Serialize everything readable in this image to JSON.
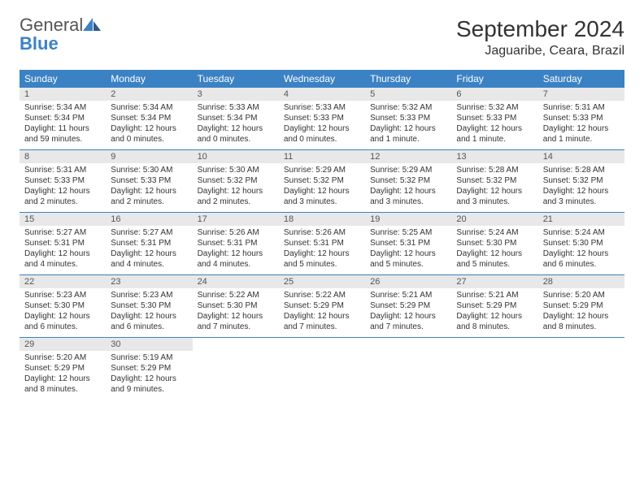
{
  "logo": {
    "text1": "General",
    "text2": "Blue"
  },
  "title": "September 2024",
  "location": "Jaguaribe, Ceara, Brazil",
  "colors": {
    "header_bg": "#3b82c4",
    "daynum_bg": "#e8e8e8",
    "text": "#333333",
    "border": "#3b82c4"
  },
  "weekdays": [
    "Sunday",
    "Monday",
    "Tuesday",
    "Wednesday",
    "Thursday",
    "Friday",
    "Saturday"
  ],
  "weeks": [
    {
      "days": [
        {
          "n": "1",
          "sr": "Sunrise: 5:34 AM",
          "ss": "Sunset: 5:34 PM",
          "dl": "Daylight: 11 hours and 59 minutes."
        },
        {
          "n": "2",
          "sr": "Sunrise: 5:34 AM",
          "ss": "Sunset: 5:34 PM",
          "dl": "Daylight: 12 hours and 0 minutes."
        },
        {
          "n": "3",
          "sr": "Sunrise: 5:33 AM",
          "ss": "Sunset: 5:34 PM",
          "dl": "Daylight: 12 hours and 0 minutes."
        },
        {
          "n": "4",
          "sr": "Sunrise: 5:33 AM",
          "ss": "Sunset: 5:33 PM",
          "dl": "Daylight: 12 hours and 0 minutes."
        },
        {
          "n": "5",
          "sr": "Sunrise: 5:32 AM",
          "ss": "Sunset: 5:33 PM",
          "dl": "Daylight: 12 hours and 1 minute."
        },
        {
          "n": "6",
          "sr": "Sunrise: 5:32 AM",
          "ss": "Sunset: 5:33 PM",
          "dl": "Daylight: 12 hours and 1 minute."
        },
        {
          "n": "7",
          "sr": "Sunrise: 5:31 AM",
          "ss": "Sunset: 5:33 PM",
          "dl": "Daylight: 12 hours and 1 minute."
        }
      ]
    },
    {
      "days": [
        {
          "n": "8",
          "sr": "Sunrise: 5:31 AM",
          "ss": "Sunset: 5:33 PM",
          "dl": "Daylight: 12 hours and 2 minutes."
        },
        {
          "n": "9",
          "sr": "Sunrise: 5:30 AM",
          "ss": "Sunset: 5:33 PM",
          "dl": "Daylight: 12 hours and 2 minutes."
        },
        {
          "n": "10",
          "sr": "Sunrise: 5:30 AM",
          "ss": "Sunset: 5:32 PM",
          "dl": "Daylight: 12 hours and 2 minutes."
        },
        {
          "n": "11",
          "sr": "Sunrise: 5:29 AM",
          "ss": "Sunset: 5:32 PM",
          "dl": "Daylight: 12 hours and 3 minutes."
        },
        {
          "n": "12",
          "sr": "Sunrise: 5:29 AM",
          "ss": "Sunset: 5:32 PM",
          "dl": "Daylight: 12 hours and 3 minutes."
        },
        {
          "n": "13",
          "sr": "Sunrise: 5:28 AM",
          "ss": "Sunset: 5:32 PM",
          "dl": "Daylight: 12 hours and 3 minutes."
        },
        {
          "n": "14",
          "sr": "Sunrise: 5:28 AM",
          "ss": "Sunset: 5:32 PM",
          "dl": "Daylight: 12 hours and 3 minutes."
        }
      ]
    },
    {
      "days": [
        {
          "n": "15",
          "sr": "Sunrise: 5:27 AM",
          "ss": "Sunset: 5:31 PM",
          "dl": "Daylight: 12 hours and 4 minutes."
        },
        {
          "n": "16",
          "sr": "Sunrise: 5:27 AM",
          "ss": "Sunset: 5:31 PM",
          "dl": "Daylight: 12 hours and 4 minutes."
        },
        {
          "n": "17",
          "sr": "Sunrise: 5:26 AM",
          "ss": "Sunset: 5:31 PM",
          "dl": "Daylight: 12 hours and 4 minutes."
        },
        {
          "n": "18",
          "sr": "Sunrise: 5:26 AM",
          "ss": "Sunset: 5:31 PM",
          "dl": "Daylight: 12 hours and 5 minutes."
        },
        {
          "n": "19",
          "sr": "Sunrise: 5:25 AM",
          "ss": "Sunset: 5:31 PM",
          "dl": "Daylight: 12 hours and 5 minutes."
        },
        {
          "n": "20",
          "sr": "Sunrise: 5:24 AM",
          "ss": "Sunset: 5:30 PM",
          "dl": "Daylight: 12 hours and 5 minutes."
        },
        {
          "n": "21",
          "sr": "Sunrise: 5:24 AM",
          "ss": "Sunset: 5:30 PM",
          "dl": "Daylight: 12 hours and 6 minutes."
        }
      ]
    },
    {
      "days": [
        {
          "n": "22",
          "sr": "Sunrise: 5:23 AM",
          "ss": "Sunset: 5:30 PM",
          "dl": "Daylight: 12 hours and 6 minutes."
        },
        {
          "n": "23",
          "sr": "Sunrise: 5:23 AM",
          "ss": "Sunset: 5:30 PM",
          "dl": "Daylight: 12 hours and 6 minutes."
        },
        {
          "n": "24",
          "sr": "Sunrise: 5:22 AM",
          "ss": "Sunset: 5:30 PM",
          "dl": "Daylight: 12 hours and 7 minutes."
        },
        {
          "n": "25",
          "sr": "Sunrise: 5:22 AM",
          "ss": "Sunset: 5:29 PM",
          "dl": "Daylight: 12 hours and 7 minutes."
        },
        {
          "n": "26",
          "sr": "Sunrise: 5:21 AM",
          "ss": "Sunset: 5:29 PM",
          "dl": "Daylight: 12 hours and 7 minutes."
        },
        {
          "n": "27",
          "sr": "Sunrise: 5:21 AM",
          "ss": "Sunset: 5:29 PM",
          "dl": "Daylight: 12 hours and 8 minutes."
        },
        {
          "n": "28",
          "sr": "Sunrise: 5:20 AM",
          "ss": "Sunset: 5:29 PM",
          "dl": "Daylight: 12 hours and 8 minutes."
        }
      ]
    },
    {
      "days": [
        {
          "n": "29",
          "sr": "Sunrise: 5:20 AM",
          "ss": "Sunset: 5:29 PM",
          "dl": "Daylight: 12 hours and 8 minutes."
        },
        {
          "n": "30",
          "sr": "Sunrise: 5:19 AM",
          "ss": "Sunset: 5:29 PM",
          "dl": "Daylight: 12 hours and 9 minutes."
        },
        {
          "empty": true
        },
        {
          "empty": true
        },
        {
          "empty": true
        },
        {
          "empty": true
        },
        {
          "empty": true
        }
      ]
    }
  ]
}
